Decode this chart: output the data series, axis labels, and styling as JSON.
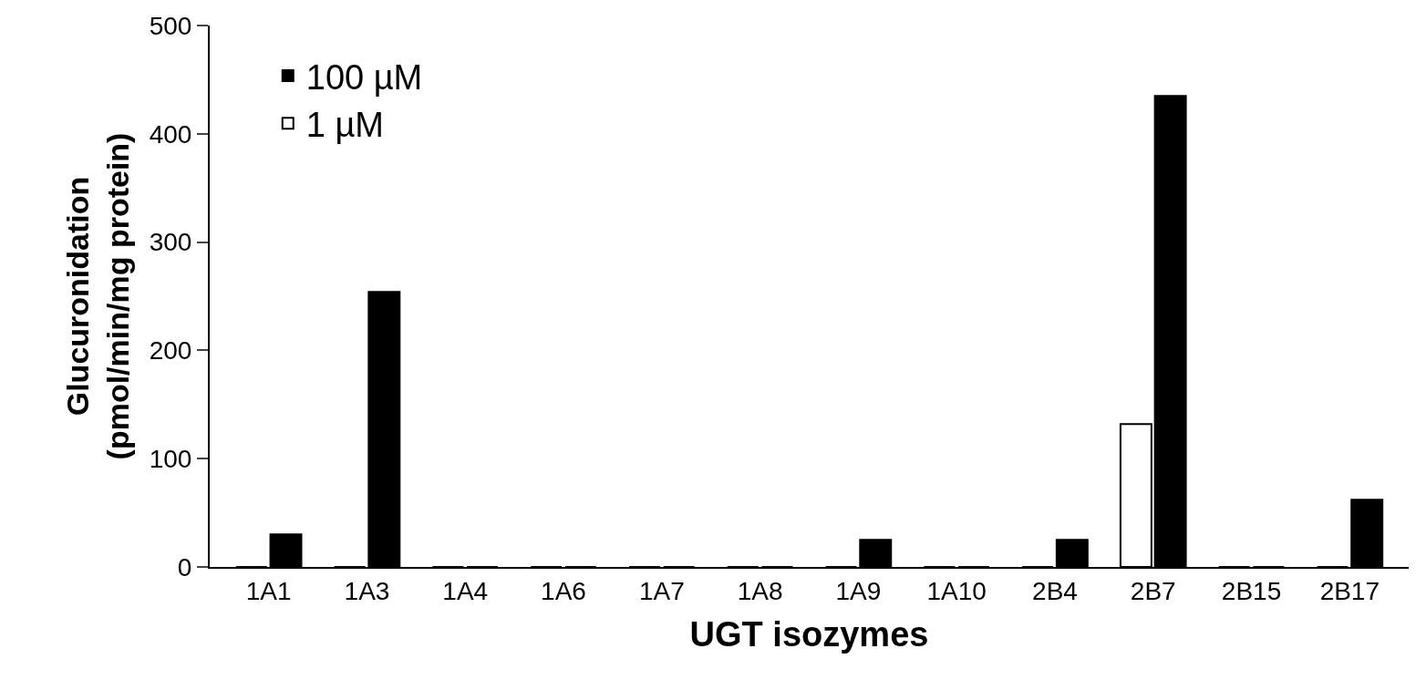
{
  "chart_data": {
    "type": "bar",
    "xlabel": "UGT isozymes",
    "ylabel": "Glucuronidation\n(pmol/min/mg protein)",
    "categories": [
      "1A1",
      "1A3",
      "1A4",
      "1A6",
      "1A7",
      "1A8",
      "1A9",
      "1A10",
      "2B4",
      "2B7",
      "2B15",
      "2B17"
    ],
    "series": [
      {
        "name": "1 µM",
        "color": "#ffffff",
        "values": [
          0,
          0,
          0,
          0,
          0,
          0,
          0,
          0,
          0,
          132,
          0,
          0
        ]
      },
      {
        "name": "100 µM",
        "color": "#000000",
        "values": [
          30,
          254,
          0,
          0,
          0,
          0,
          25,
          0,
          25,
          435,
          0,
          62
        ]
      }
    ],
    "ylim": [
      0,
      500
    ],
    "yticks": [
      0,
      100,
      200,
      300,
      400,
      500
    ],
    "grid": false,
    "legend": "top left"
  }
}
